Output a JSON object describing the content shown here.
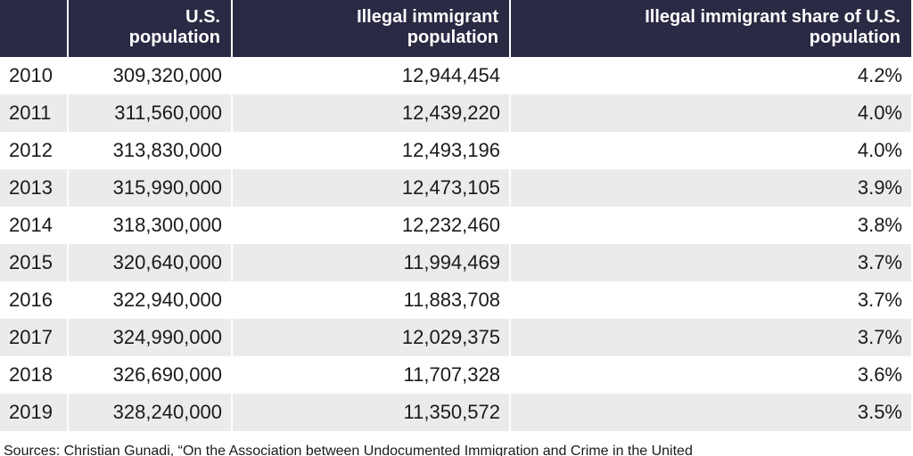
{
  "chart_data": {
    "type": "table",
    "columns": [
      {
        "lines": [
          "",
          ""
        ]
      },
      {
        "lines": [
          "U.S.",
          "population"
        ]
      },
      {
        "lines": [
          "Illegal immigrant",
          "population"
        ]
      },
      {
        "lines": [
          "Illegal immigrant share of U.S.",
          "population"
        ]
      }
    ],
    "rows": [
      [
        "2010",
        "309,320,000",
        "12,944,454",
        "4.2%"
      ],
      [
        "2011",
        "311,560,000",
        "12,439,220",
        "4.0%"
      ],
      [
        "2012",
        "313,830,000",
        "12,493,196",
        "4.0%"
      ],
      [
        "2013",
        "315,990,000",
        "12,473,105",
        "3.9%"
      ],
      [
        "2014",
        "318,300,000",
        "12,232,460",
        "3.8%"
      ],
      [
        "2015",
        "320,640,000",
        "11,994,469",
        "3.7%"
      ],
      [
        "2016",
        "322,940,000",
        "11,883,708",
        "3.7%"
      ],
      [
        "2017",
        "324,990,000",
        "12,029,375",
        "3.7%"
      ],
      [
        "2018",
        "326,690,000",
        "11,707,328",
        "3.6%"
      ],
      [
        "2019",
        "328,240,000",
        "11,350,572",
        "3.5%"
      ]
    ]
  },
  "source_text": "Sources: Christian Gunadi, “On the Association between Undocumented Immigration and Crime in the United",
  "colors": {
    "header_bg": "#2b2a44",
    "header_text": "#ffffff",
    "stripe": "#ebebeb"
  }
}
